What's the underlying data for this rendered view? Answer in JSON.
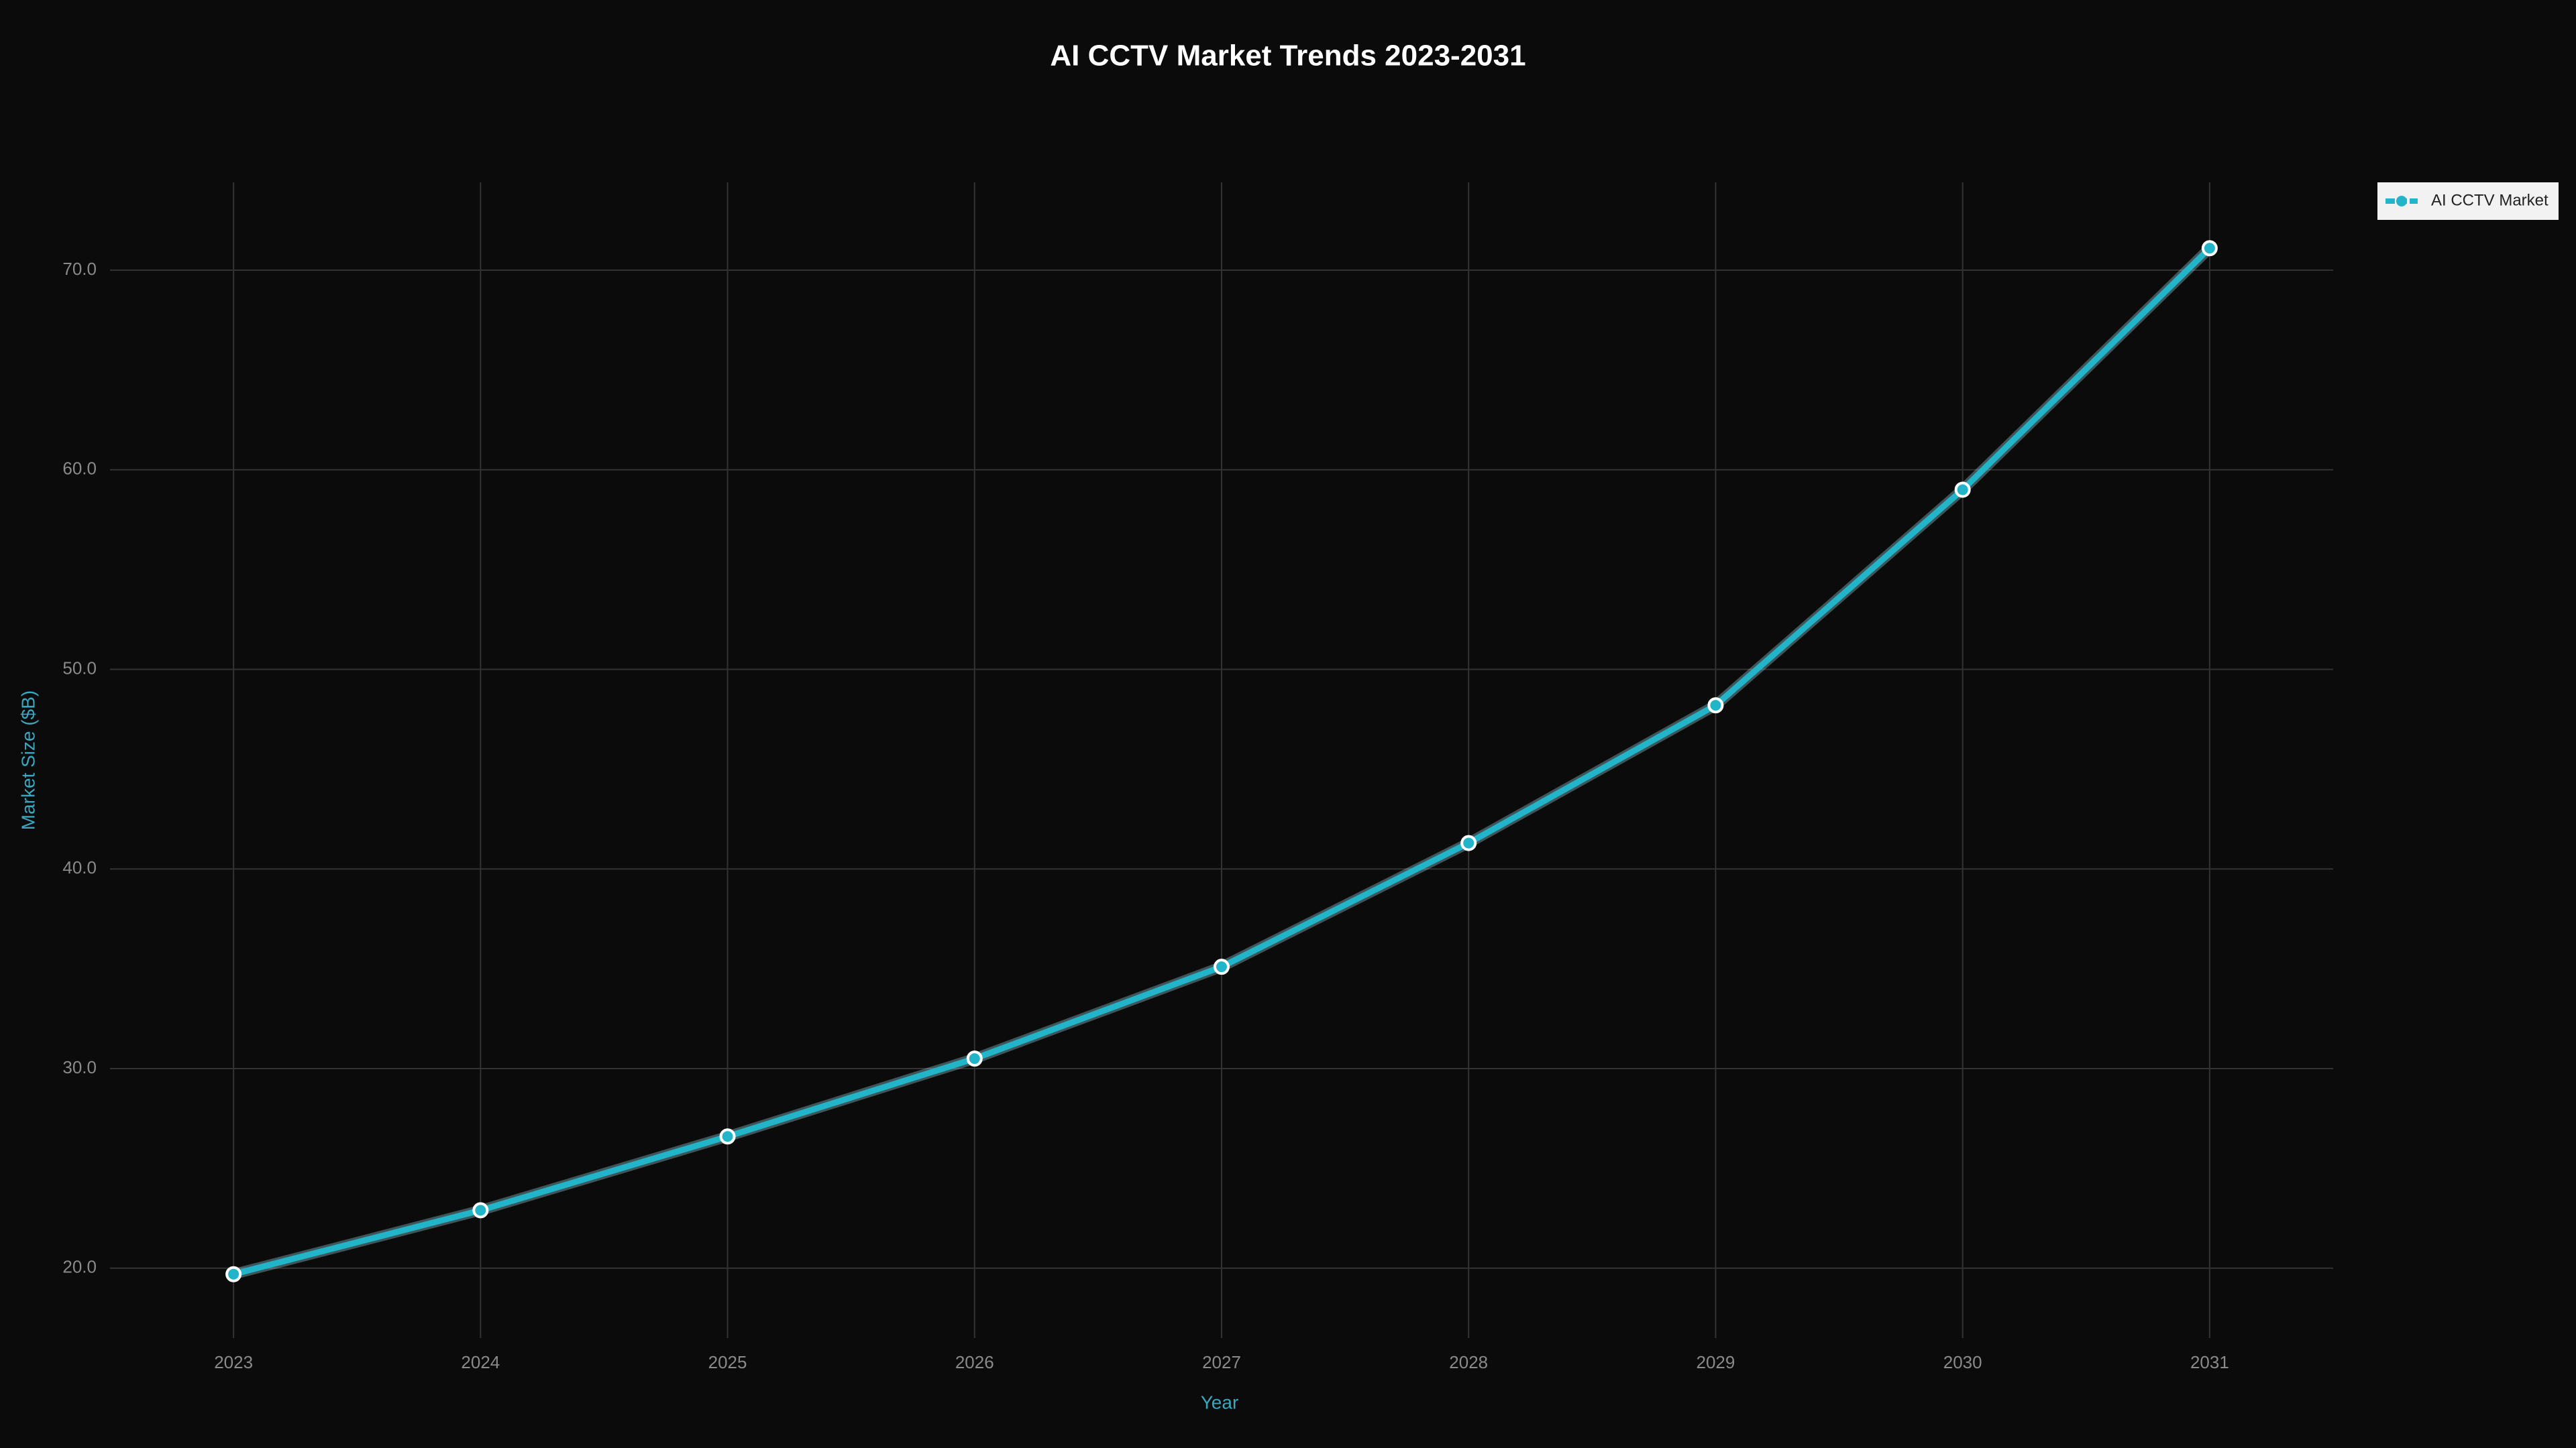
{
  "chart_data": {
    "type": "line",
    "title": "AI CCTV Market Trends 2023-2031",
    "x_label": "Year",
    "y_label": "Market Size ($B)",
    "x": [
      2023,
      2024,
      2025,
      2026,
      2027,
      2028,
      2029,
      2030,
      2031
    ],
    "series": [
      {
        "name": "AI CCTV Market",
        "color": "#22b4c8",
        "values": [
          19.7,
          22.9,
          26.6,
          30.5,
          35.1,
          41.3,
          48.2,
          59.0,
          71.1
        ]
      }
    ],
    "xlim": [
      2022.5,
      2031.5
    ],
    "ylim": [
      16.5,
      74.4
    ],
    "xticks": [
      2023,
      2024,
      2025,
      2026,
      2027,
      2028,
      2029,
      2030,
      2031
    ],
    "yticks": [
      {
        "value": 20,
        "label": "20.0"
      },
      {
        "value": 30,
        "label": "30.0"
      },
      {
        "value": 40,
        "label": "40.0"
      },
      {
        "value": 50,
        "label": "50.0"
      },
      {
        "value": 60,
        "label": "60.0"
      },
      {
        "value": 70,
        "label": "70.0"
      }
    ],
    "grid": true,
    "legend": "top-right"
  }
}
